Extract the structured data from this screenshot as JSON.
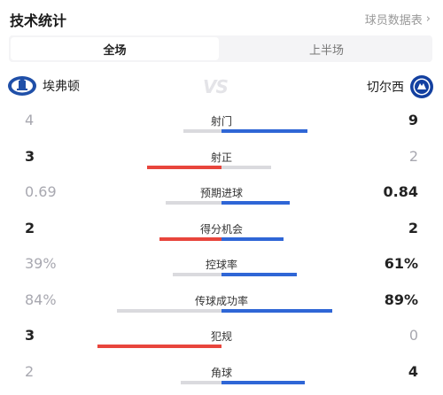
{
  "header": {
    "title": "技术统计",
    "link_label": "球员数据表",
    "link_icon": "chevron-right-icon"
  },
  "tabs": [
    {
      "label": "全场",
      "active": true
    },
    {
      "label": "上半场",
      "active": false
    }
  ],
  "teams": {
    "home": {
      "name": "埃弗顿",
      "logo_icon": "everton-crest-icon",
      "color": "#1f4fa8"
    },
    "away": {
      "name": "切尔西",
      "logo_icon": "chelsea-crest-icon",
      "color": "#1340a0"
    },
    "vs_label": "VS"
  },
  "colors": {
    "leader": "#e8453c",
    "away_bar": "#2f66d6",
    "neutral": "#dadade"
  },
  "stats": [
    {
      "label": "射门",
      "home": "4",
      "away": "9",
      "home_share": 0.31,
      "away_share": 0.69,
      "leader": "away"
    },
    {
      "label": "射正",
      "home": "3",
      "away": "2",
      "home_share": 0.6,
      "away_share": 0.4,
      "leader": "home"
    },
    {
      "label": "预期进球",
      "home": "0.69",
      "away": "0.84",
      "home_share": 0.45,
      "away_share": 0.55,
      "leader": "away"
    },
    {
      "label": "得分机会",
      "home": "2",
      "away": "2",
      "home_share": 0.5,
      "away_share": 0.5,
      "leader": "both"
    },
    {
      "label": "控球率",
      "home": "39%",
      "away": "61%",
      "home_share": 0.39,
      "away_share": 0.61,
      "leader": "away"
    },
    {
      "label": "传球成功率",
      "home": "84%",
      "away": "89%",
      "home_share": 0.84,
      "away_share": 0.89,
      "leader": "away"
    },
    {
      "label": "犯规",
      "home": "3",
      "away": "0",
      "home_share": 1.0,
      "away_share": 0.0,
      "leader": "home"
    },
    {
      "label": "角球",
      "home": "2",
      "away": "4",
      "home_share": 0.33,
      "away_share": 0.67,
      "leader": "away"
    }
  ]
}
